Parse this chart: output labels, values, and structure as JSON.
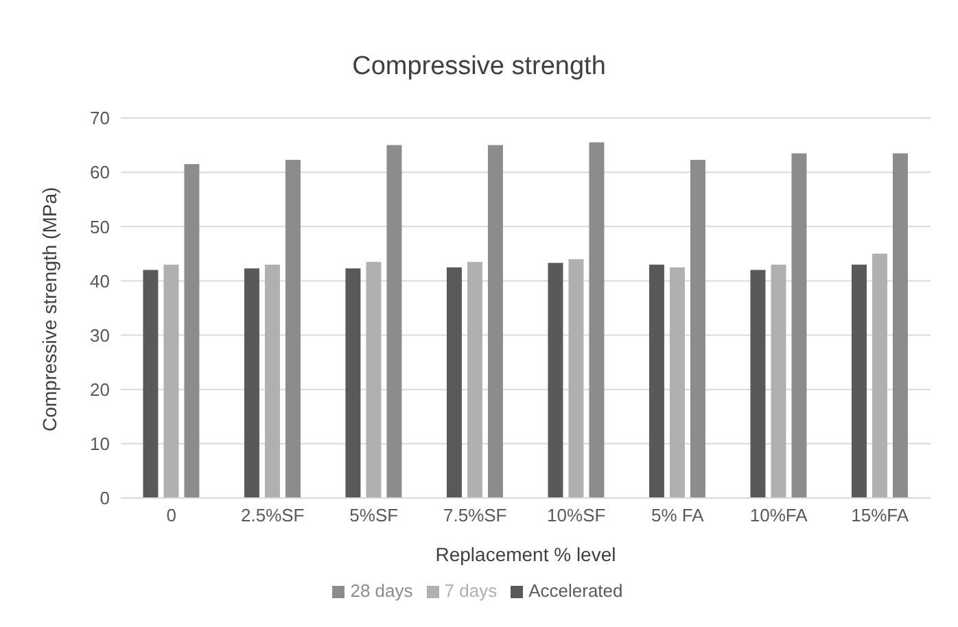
{
  "chart_data": {
    "type": "bar",
    "title": "Compressive strength",
    "xlabel": "Replacement % level",
    "ylabel": "Compressive strength (MPa)",
    "categories": [
      "0",
      "2.5%SF",
      "5%SF",
      "7.5%SF",
      "10%SF",
      "5% FA",
      "10%FA",
      "15%FA"
    ],
    "series": [
      {
        "name": "Accelerated",
        "color": "#595959",
        "values": [
          42,
          42.3,
          42.3,
          42.5,
          43.3,
          43,
          42,
          43
        ]
      },
      {
        "name": "7 days",
        "color": "#b0b0b0",
        "values": [
          43,
          43,
          43.5,
          43.5,
          44,
          42.5,
          43,
          45
        ]
      },
      {
        "name": "28 days",
        "color": "#8c8c8c",
        "values": [
          61.5,
          62.3,
          65,
          65,
          65.5,
          62.3,
          63.5,
          63.5
        ]
      }
    ],
    "ylim": [
      0,
      70
    ],
    "yticks": [
      0,
      10,
      20,
      30,
      40,
      50,
      60,
      70
    ],
    "grid": "y",
    "legend": "bottom"
  }
}
